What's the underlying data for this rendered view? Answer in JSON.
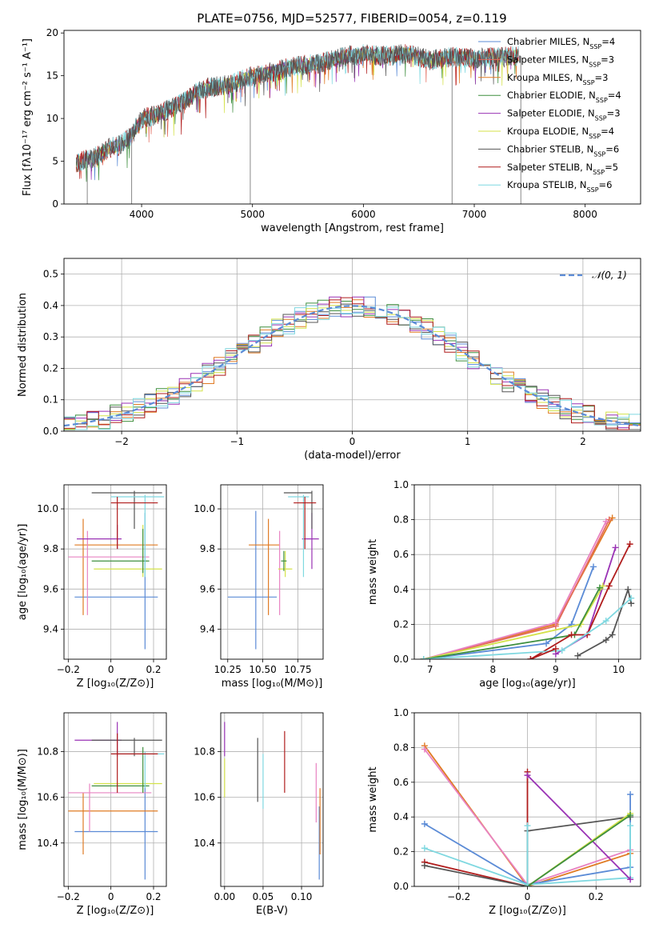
{
  "figure": {
    "title": "PLATE=0756, MJD=52577, FIBERID=0054, z=0.119"
  },
  "colors": {
    "Chabrier MILES": "#5b8bd6",
    "Salpeter MILES": "#e36a5c",
    "Kroupa MILES": "#e07b24",
    "Chabrier ELODIE": "#3f8f3f",
    "Salpeter ELODIE": "#9a32b5",
    "Kroupa ELODIE": "#d4e24a",
    "Chabrier STELIB": "#555555",
    "Salpeter STELIB": "#b01c1c",
    "Kroupa STELIB": "#7fd8e0",
    "pink": "#e883c2",
    "gaussian": "#5b8bd6",
    "grid": "#b0b0b0"
  },
  "chart_data": [
    {
      "id": "spectrum",
      "type": "line",
      "xlabel": "wavelength [Angstrom, rest frame]",
      "ylabel": "Flux [fλ10⁻¹⁷ erg cm⁻² s⁻¹ A⁻¹]",
      "xlim": [
        3300,
        8500
      ],
      "ylim": [
        0,
        20.3
      ],
      "xticks": [
        4000,
        5000,
        6000,
        7000,
        8000
      ],
      "yticks": [
        0,
        5,
        10,
        15,
        20
      ],
      "grid": false,
      "legend_position": "top-right",
      "legend": [
        {
          "name": "Chabrier MILES",
          "n": "4"
        },
        {
          "name": "Salpeter MILES",
          "n": "3"
        },
        {
          "name": "Kroupa MILES",
          "n": "3"
        },
        {
          "name": "Chabrier ELODIE",
          "n": "4"
        },
        {
          "name": "Salpeter ELODIE",
          "n": "3"
        },
        {
          "name": "Kroupa ELODIE",
          "n": "4"
        },
        {
          "name": "Chabrier STELIB",
          "n": "6"
        },
        {
          "name": "Salpeter STELIB",
          "n": "5"
        },
        {
          "name": "Kroupa STELIB",
          "n": "6"
        }
      ],
      "continuum": {
        "x": [
          3410,
          3600,
          3700,
          3800,
          3900,
          4000,
          4100,
          4200,
          4300,
          4400,
          4500,
          4600,
          4800,
          5000,
          5200,
          5400,
          5600,
          5800,
          6000,
          6200,
          6400,
          6600,
          6800,
          7000,
          7200,
          7400
        ],
        "y": [
          4.8,
          5.6,
          6.5,
          6.9,
          7.8,
          10.0,
          10.3,
          10.8,
          11.4,
          12.1,
          13.2,
          13.6,
          14.0,
          15.0,
          15.5,
          16.2,
          16.4,
          17.2,
          17.5,
          17.3,
          17.6,
          16.8,
          17.2,
          17.0,
          17.2,
          17.3
        ]
      },
      "vertical_artifacts": [
        {
          "x": 3510,
          "y_low": 0
        },
        {
          "x": 3910,
          "y_low": 0
        },
        {
          "x": 4980,
          "y_low": 0
        },
        {
          "x": 6800,
          "y_low": 0
        },
        {
          "x": 7420,
          "y_low": 0
        }
      ]
    },
    {
      "id": "residuals",
      "type": "histogram",
      "xlabel": "(data-model)/error",
      "ylabel": "Normed distribution",
      "xlim": [
        -2.5,
        2.5
      ],
      "ylim": [
        0,
        0.55
      ],
      "xticks": [
        -2,
        -1,
        0,
        1,
        2
      ],
      "yticks": [
        0.0,
        0.1,
        0.2,
        0.3,
        0.4,
        0.5
      ],
      "grid": true,
      "legend": "𝒩(0, 1)",
      "legend_position": "top-right",
      "bin_width": 0.1,
      "gaussian": {
        "mean": 0,
        "sigma": 1
      }
    },
    {
      "id": "age-vs-Z",
      "type": "errorbar",
      "xlabel": "Z [log₁₀(Z/Z⊙)]",
      "ylabel": "age  [log₁₀(age/yr)]",
      "xlim": [
        -0.22,
        0.26
      ],
      "ylim": [
        9.25,
        10.12
      ],
      "xticks": [
        -0.2,
        0.0,
        0.2
      ],
      "yticks": [
        9.4,
        9.6,
        9.8,
        10.0
      ],
      "grid": true,
      "points": [
        {
          "c": "Chabrier MILES",
          "x": 0.02,
          "xl": -0.17,
          "xh": 0.22,
          "y": 9.56,
          "yl": 9.56,
          "yh": 9.56,
          "vx": 0.16,
          "vl": 9.3,
          "vh": 9.98
        },
        {
          "c": "Kroupa MILES",
          "x": 0.04,
          "xl": -0.17,
          "xh": 0.22,
          "y": 9.82,
          "yl": 9.82,
          "yh": 9.82,
          "vx": -0.13,
          "vl": 9.47,
          "vh": 9.95
        },
        {
          "c": "pink",
          "x": -0.05,
          "xl": -0.2,
          "xh": 0.18,
          "y": 9.76,
          "yl": 9.76,
          "yh": 9.76,
          "vx": -0.11,
          "vl": 9.47,
          "vh": 9.89
        },
        {
          "c": "Salpeter ELODIE",
          "x": 0.0,
          "xl": -0.16,
          "xh": 0.05,
          "y": 9.85,
          "yl": 9.85,
          "yh": 9.85,
          "vx": 0.03,
          "vl": 9.8,
          "vh": 9.92
        },
        {
          "c": "Kroupa ELODIE",
          "x": 0.09,
          "xl": -0.08,
          "xh": 0.24,
          "y": 9.7,
          "yl": 9.7,
          "yh": 9.7,
          "vx": 0.15,
          "vl": 9.66,
          "vh": 9.92
        },
        {
          "c": "Chabrier ELODIE",
          "x": 0.06,
          "xl": -0.09,
          "xh": 0.18,
          "y": 9.74,
          "yl": 9.74,
          "yh": 9.74,
          "vx": 0.15,
          "vl": 9.68,
          "vh": 9.9
        },
        {
          "c": "Chabrier STELIB",
          "x": 0.1,
          "xl": -0.09,
          "xh": 0.24,
          "y": 10.08,
          "yl": 10.08,
          "yh": 10.08,
          "vx": 0.11,
          "vl": 9.9,
          "vh": 10.09
        },
        {
          "c": "Kroupa STELIB",
          "x": 0.12,
          "xl": -0.0,
          "xh": 0.25,
          "y": 10.06,
          "yl": 10.06,
          "yh": 10.06,
          "vx": 0.16,
          "vl": 9.66,
          "vh": 10.07
        },
        {
          "c": "Salpeter STELIB",
          "x": 0.07,
          "xl": -0.0,
          "xh": 0.22,
          "y": 10.03,
          "yl": 10.03,
          "yh": 10.03,
          "vx": 0.03,
          "vl": 9.8,
          "vh": 10.06
        }
      ]
    },
    {
      "id": "age-vs-mass",
      "type": "errorbar",
      "xlabel": "mass [log₁₀(M/M⊙)]",
      "ylabel": "",
      "xlim": [
        10.2,
        10.93
      ],
      "ylim": [
        9.25,
        10.12
      ],
      "xticks": [
        10.25,
        10.5,
        10.75
      ],
      "xticklabels": [
        "10.25",
        "10.50",
        "10.75"
      ],
      "yticks": [
        9.4,
        9.6,
        9.8,
        10.0
      ],
      "grid": true,
      "points": [
        {
          "c": "Chabrier MILES",
          "x": 10.45,
          "xl": 10.25,
          "xh": 10.6,
          "y": 9.56,
          "yl": 9.56,
          "yh": 9.56,
          "vx": 10.45,
          "vl": 9.3,
          "vh": 9.99
        },
        {
          "c": "Kroupa MILES",
          "x": 10.54,
          "xl": 10.4,
          "xh": 10.62,
          "y": 9.82,
          "yl": 9.82,
          "yh": 9.82,
          "vx": 10.54,
          "vl": 9.47,
          "vh": 9.95
        },
        {
          "c": "pink",
          "x": 10.62,
          "xl": 10.62,
          "xh": 10.62,
          "y": 9.76,
          "yl": 9.76,
          "yh": 9.76,
          "vx": 10.62,
          "vl": 9.47,
          "vh": 9.89
        },
        {
          "c": "Salpeter ELODIE",
          "x": 10.85,
          "xl": 10.78,
          "xh": 10.9,
          "y": 9.85,
          "yl": 9.85,
          "yh": 9.85,
          "vx": 10.85,
          "vl": 9.7,
          "vh": 9.98
        },
        {
          "c": "Kroupa ELODIE",
          "x": 10.66,
          "xl": 10.61,
          "xh": 10.71,
          "y": 9.7,
          "yl": 9.7,
          "yh": 9.7,
          "vx": 10.66,
          "vl": 9.66,
          "vh": 9.79
        },
        {
          "c": "Chabrier ELODIE",
          "x": 10.65,
          "xl": 10.63,
          "xh": 10.67,
          "y": 9.74,
          "yl": 9.74,
          "yh": 9.74,
          "vx": 10.65,
          "vl": 9.69,
          "vh": 9.79
        },
        {
          "c": "Chabrier STELIB",
          "x": 10.78,
          "xl": 10.65,
          "xh": 10.85,
          "y": 10.08,
          "yl": 10.08,
          "yh": 10.08,
          "vx": 10.85,
          "vl": 9.9,
          "vh": 10.09
        },
        {
          "c": "Kroupa STELIB",
          "x": 10.79,
          "xl": 10.68,
          "xh": 10.83,
          "y": 10.06,
          "yl": 10.06,
          "yh": 10.06,
          "vx": 10.79,
          "vl": 9.66,
          "vh": 10.07
        },
        {
          "c": "Salpeter STELIB",
          "x": 10.8,
          "xl": 10.72,
          "xh": 10.88,
          "y": 10.03,
          "yl": 10.03,
          "yh": 10.03,
          "vx": 10.8,
          "vl": 9.8,
          "vh": 10.06
        }
      ]
    },
    {
      "id": "mass-weight-vs-age",
      "type": "line",
      "xlabel": "age  [log₁₀(age/yr)]",
      "ylabel": "mass weight",
      "xlim": [
        6.75,
        10.35
      ],
      "ylim": [
        0,
        1.0
      ],
      "xticks": [
        7,
        8,
        9,
        10
      ],
      "yticks": [
        0.0,
        0.2,
        0.4,
        0.6,
        0.8,
        1.0
      ],
      "grid": true,
      "series": [
        {
          "c": "Chabrier MILES",
          "x": [
            6.9,
            8.85,
            9.25,
            9.6
          ],
          "y": [
            0.0,
            0.09,
            0.2,
            0.53
          ]
        },
        {
          "c": "Kroupa MILES",
          "x": [
            6.9,
            9.0,
            9.9
          ],
          "y": [
            0.0,
            0.2,
            0.81
          ]
        },
        {
          "c": "Salpeter MILES",
          "x": [
            6.9,
            9.0,
            9.85
          ],
          "y": [
            0.0,
            0.19,
            0.8
          ]
        },
        {
          "c": "pink",
          "x": [
            6.9,
            9.0,
            9.8
          ],
          "y": [
            0.0,
            0.21,
            0.79
          ]
        },
        {
          "c": "Salpeter ELODIE",
          "x": [
            9.0,
            9.5,
            9.95
          ],
          "y": [
            0.03,
            0.14,
            0.64
          ]
        },
        {
          "c": "Kroupa ELODIE",
          "x": [
            6.9,
            9.4,
            9.75
          ],
          "y": [
            0.0,
            0.2,
            0.42
          ]
        },
        {
          "c": "Chabrier ELODIE",
          "x": [
            6.9,
            9.3,
            9.7
          ],
          "y": [
            0.0,
            0.14,
            0.41
          ]
        },
        {
          "c": "Chabrier STELIB",
          "x": [
            9.35,
            9.8,
            9.9,
            10.15,
            10.2
          ],
          "y": [
            0.02,
            0.11,
            0.14,
            0.4,
            0.32
          ]
        },
        {
          "c": "Salpeter STELIB",
          "x": [
            8.6,
            9.25,
            9.5,
            9.85,
            10.18
          ],
          "y": [
            0.0,
            0.14,
            0.14,
            0.42,
            0.66
          ]
        },
        {
          "c": "Kroupa STELIB",
          "x": [
            6.9,
            9.1,
            9.8,
            10.2
          ],
          "y": [
            0.0,
            0.05,
            0.22,
            0.35
          ]
        },
        {
          "c": "Salpeter STELIB",
          "x": [
            8.6,
            9.0
          ],
          "y": [
            0.0,
            0.06
          ]
        }
      ]
    },
    {
      "id": "mass-vs-Z",
      "type": "errorbar",
      "xlabel": "Z [log₁₀(Z/Z⊙)]",
      "ylabel": "mass [log₁₀(M/M⊙)]",
      "xlim": [
        -0.22,
        0.26
      ],
      "ylim": [
        10.21,
        10.97
      ],
      "xticks": [
        -0.2,
        0.0,
        0.2
      ],
      "yticks": [
        10.4,
        10.6,
        10.8
      ],
      "grid": true,
      "points": [
        {
          "c": "Chabrier MILES",
          "x": 0.16,
          "xl": -0.17,
          "xh": 0.22,
          "y": 10.45,
          "yl": 10.45,
          "yh": 10.45,
          "vx": 0.16,
          "vl": 10.24,
          "vh": 10.65
        },
        {
          "c": "Kroupa MILES",
          "x": -0.13,
          "xl": -0.2,
          "xh": 0.22,
          "y": 10.54,
          "yl": 10.54,
          "yh": 10.54,
          "vx": -0.13,
          "vl": 10.35,
          "vh": 10.62
        },
        {
          "c": "pink",
          "x": -0.1,
          "xl": -0.2,
          "xh": 0.19,
          "y": 10.62,
          "yl": 10.62,
          "yh": 10.62,
          "vx": -0.1,
          "vl": 10.45,
          "vh": 10.66
        },
        {
          "c": "Salpeter ELODIE",
          "x": 0.03,
          "xl": -0.17,
          "xh": 0.05,
          "y": 10.85,
          "yl": 10.85,
          "yh": 10.85,
          "vx": 0.03,
          "vl": 10.78,
          "vh": 10.93
        },
        {
          "c": "Kroupa ELODIE",
          "x": 0.15,
          "xl": -0.08,
          "xh": 0.24,
          "y": 10.66,
          "yl": 10.66,
          "yh": 10.66,
          "vx": 0.15,
          "vl": 10.62,
          "vh": 10.72
        },
        {
          "c": "Chabrier ELODIE",
          "x": 0.15,
          "xl": -0.09,
          "xh": 0.18,
          "y": 10.65,
          "yl": 10.65,
          "yh": 10.65,
          "vx": 0.15,
          "vl": 10.62,
          "vh": 10.82
        },
        {
          "c": "Chabrier STELIB",
          "x": 0.11,
          "xl": -0.09,
          "xh": 0.24,
          "y": 10.85,
          "yl": 10.85,
          "yh": 10.85,
          "vx": 0.11,
          "vl": 10.78,
          "vh": 10.86
        },
        {
          "c": "Kroupa STELIB",
          "x": 0.16,
          "xl": -0.0,
          "xh": 0.25,
          "y": 10.79,
          "yl": 10.79,
          "yh": 10.79,
          "vx": 0.16,
          "vl": 10.64,
          "vh": 10.8
        },
        {
          "c": "Salpeter STELIB",
          "x": 0.03,
          "xl": -0.0,
          "xh": 0.22,
          "y": 10.79,
          "yl": 10.79,
          "yh": 10.79,
          "vx": 0.03,
          "vl": 10.62,
          "vh": 10.88
        }
      ]
    },
    {
      "id": "mass-vs-EBV",
      "type": "errorbar",
      "xlabel": "E(B-V)",
      "ylabel": "",
      "xlim": [
        -0.005,
        0.128
      ],
      "ylim": [
        10.21,
        10.97
      ],
      "xticks": [
        0.0,
        0.05,
        0.1
      ],
      "xticklabels": [
        "0.00",
        "0.05",
        "0.10"
      ],
      "yticks": [
        10.4,
        10.6,
        10.8
      ],
      "grid": true,
      "points": [
        {
          "c": "Salpeter ELODIE",
          "x": 0.0,
          "vl": 10.78,
          "vh": 10.93
        },
        {
          "c": "Kroupa ELODIE",
          "x": 0.0,
          "vl": 10.6,
          "vh": 10.77
        },
        {
          "c": "Chabrier STELIB",
          "x": 0.043,
          "vl": 10.58,
          "vh": 10.86
        },
        {
          "c": "Kroupa STELIB",
          "x": 0.05,
          "vl": 10.55,
          "vh": 10.79
        },
        {
          "c": "Salpeter STELIB",
          "x": 0.078,
          "vl": 10.62,
          "vh": 10.89
        },
        {
          "c": "pink",
          "x": 0.119,
          "vl": 10.49,
          "vh": 10.75
        },
        {
          "c": "Chabrier MILES",
          "x": 0.123,
          "vl": 10.24,
          "vh": 10.56
        },
        {
          "c": "Kroupa MILES",
          "x": 0.124,
          "vl": 10.35,
          "vh": 10.64
        }
      ]
    },
    {
      "id": "mass-weight-vs-Z",
      "type": "line",
      "xlabel": "Z [log₁₀(Z/Z⊙)]",
      "ylabel": "mass weight",
      "xlim": [
        -0.33,
        0.33
      ],
      "ylim": [
        0,
        1.0
      ],
      "xticks": [
        -0.2,
        0.0,
        0.2
      ],
      "yticks": [
        0.0,
        0.2,
        0.4,
        0.6,
        0.8,
        1.0
      ],
      "grid": true,
      "series": [
        {
          "c": "Kroupa MILES",
          "x": [
            -0.3,
            0.0,
            0.3
          ],
          "y": [
            0.81,
            0.0,
            0.19
          ]
        },
        {
          "c": "pink",
          "x": [
            -0.3,
            0.0,
            0.3
          ],
          "y": [
            0.79,
            0.01,
            0.21
          ]
        },
        {
          "c": "Chabrier MILES",
          "x": [
            -0.3,
            0.0,
            0.3,
            0.3
          ],
          "y": [
            0.36,
            0.01,
            0.11,
            0.53
          ]
        },
        {
          "c": "Kroupa STELIB",
          "x": [
            -0.3,
            0.0,
            0.3,
            0.3
          ],
          "y": [
            0.22,
            0.01,
            0.05,
            0.35
          ]
        },
        {
          "c": "Salpeter STELIB",
          "x": [
            -0.3,
            0.0,
            0.0
          ],
          "y": [
            0.14,
            0.0,
            0.66
          ]
        },
        {
          "c": "Chabrier STELIB",
          "x": [
            -0.3,
            0.0,
            0.0,
            0.3
          ],
          "y": [
            0.12,
            0.0,
            0.32,
            0.4
          ]
        },
        {
          "c": "Salpeter ELODIE",
          "x": [
            0.0,
            0.3
          ],
          "y": [
            0.64,
            0.04
          ]
        },
        {
          "c": "Kroupa ELODIE",
          "x": [
            0.0,
            0.3
          ],
          "y": [
            0.0,
            0.42
          ]
        },
        {
          "c": "Chabrier ELODIE",
          "x": [
            0.0,
            0.3
          ],
          "y": [
            0.0,
            0.41
          ]
        },
        {
          "c": "Kroupa STELIB",
          "x": [
            0.0,
            0.0
          ],
          "y": [
            0.0,
            0.35
          ]
        }
      ]
    }
  ]
}
